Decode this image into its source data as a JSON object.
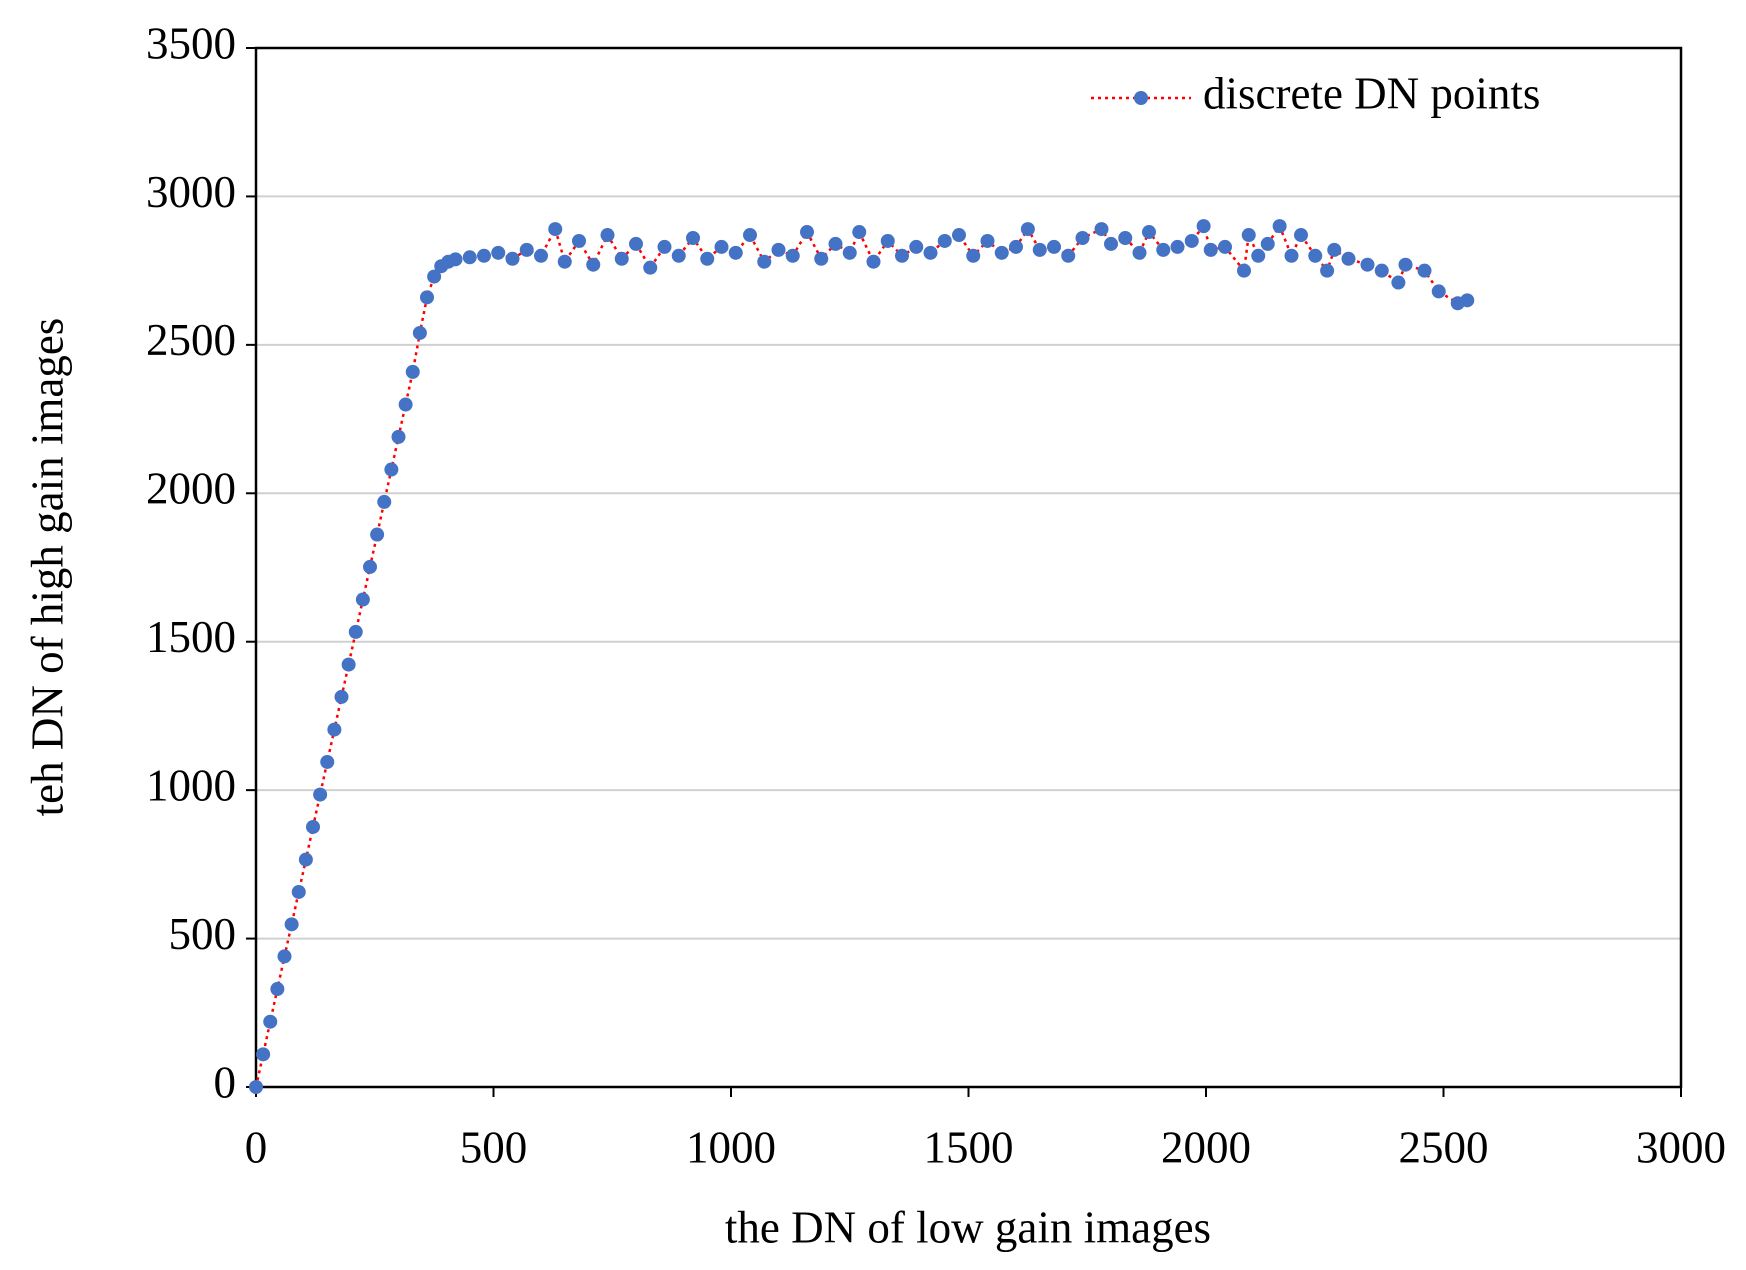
{
  "chart_data": {
    "type": "scatter",
    "xlabel": "the DN of low gain images",
    "ylabel": "teh DN of high gain images",
    "xlim": [
      0,
      3000
    ],
    "xticks": [
      0,
      500,
      1000,
      1500,
      2000,
      2500,
      3000
    ],
    "ylim": [
      0,
      3500
    ],
    "yticks": [
      0,
      500,
      1000,
      1500,
      2000,
      2500,
      3000,
      3500
    ],
    "grid": true,
    "legend": "upper right",
    "series": [
      {
        "name": "discrete DN points",
        "color": "#4472c4",
        "line_color": "#ff0000",
        "x": [
          0,
          15,
          30,
          45,
          60,
          75,
          90,
          105,
          120,
          135,
          150,
          165,
          180,
          195,
          210,
          225,
          240,
          255,
          270,
          285,
          300,
          315,
          330,
          345,
          360,
          375,
          390,
          405,
          420,
          450,
          480,
          510,
          540,
          570,
          600,
          630,
          650,
          680,
          710,
          740,
          770,
          800,
          830,
          860,
          890,
          920,
          950,
          980,
          1010,
          1040,
          1070,
          1100,
          1130,
          1160,
          1190,
          1220,
          1250,
          1270,
          1300,
          1330,
          1360,
          1390,
          1420,
          1450,
          1480,
          1510,
          1540,
          1570,
          1600,
          1625,
          1650,
          1680,
          1710,
          1740,
          1780,
          1800,
          1830,
          1860,
          1880,
          1910,
          1940,
          1970,
          1995,
          2010,
          2040,
          2080,
          2090,
          2110,
          2130,
          2155,
          2180,
          2200,
          2230,
          2255,
          2270,
          2300,
          2340,
          2370,
          2405,
          2420,
          2460,
          2490,
          2530,
          2550
        ],
        "values": [
          0,
          110,
          220,
          330,
          440,
          548,
          657,
          766,
          876,
          985,
          1095,
          1204,
          1314,
          1423,
          1533,
          1642,
          1752,
          1861,
          1971,
          2080,
          2190,
          2299,
          2409,
          2540,
          2660,
          2730,
          2765,
          2780,
          2788,
          2795,
          2800,
          2810,
          2790,
          2820,
          2800,
          2890,
          2780,
          2850,
          2770,
          2870,
          2790,
          2840,
          2760,
          2830,
          2800,
          2860,
          2790,
          2830,
          2810,
          2870,
          2780,
          2820,
          2800,
          2880,
          2790,
          2840,
          2810,
          2880,
          2780,
          2850,
          2800,
          2830,
          2810,
          2850,
          2870,
          2800,
          2850,
          2810,
          2830,
          2890,
          2820,
          2830,
          2800,
          2860,
          2890,
          2840,
          2860,
          2810,
          2880,
          2820,
          2830,
          2850,
          2900,
          2820,
          2830,
          2750,
          2870,
          2800,
          2840,
          2900,
          2800,
          2870,
          2800,
          2750,
          2820,
          2790,
          2770,
          2750,
          2710,
          2770,
          2750,
          2680,
          2640,
          2650
        ]
      }
    ]
  }
}
